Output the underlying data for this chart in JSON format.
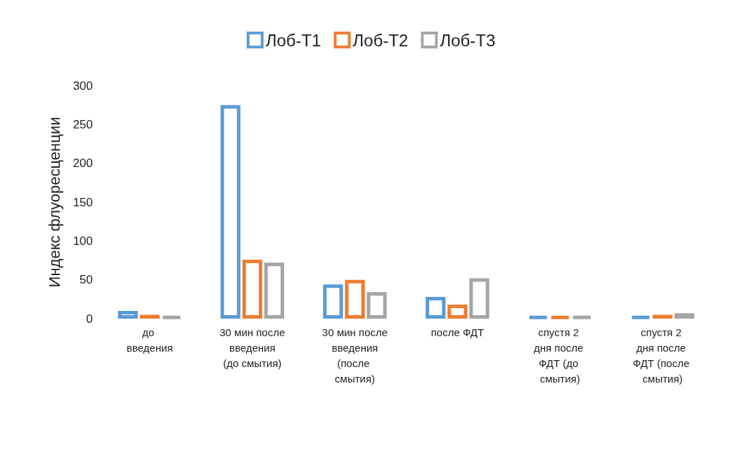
{
  "chart_data": {
    "type": "bar",
    "ylabel": "Индекс флуоресценции",
    "categories": [
      "до введения",
      "30 мин после введения (до смытия)",
      "30 мин после введения (после смытия)",
      "после ФДТ",
      "спустя 2 дня после ФДТ (до смытия)",
      "спустя 2 дня после ФДТ (после смытия)"
    ],
    "series": [
      {
        "name": "Лоб-Т1",
        "color": "#5b9bd5",
        "values": [
          10,
          275,
          44,
          28,
          3,
          3
        ]
      },
      {
        "name": "Лоб-Т2",
        "color": "#ed7d31",
        "values": [
          5,
          76,
          50,
          18,
          3,
          5
        ]
      },
      {
        "name": "Лоб-Т3",
        "color": "#a5a5a5",
        "values": [
          3,
          72,
          34,
          52,
          3,
          7
        ]
      }
    ],
    "ylim": [
      0,
      300
    ],
    "yticks": [
      0,
      50,
      100,
      150,
      200,
      250,
      300
    ],
    "grid": false,
    "legend": "top"
  }
}
